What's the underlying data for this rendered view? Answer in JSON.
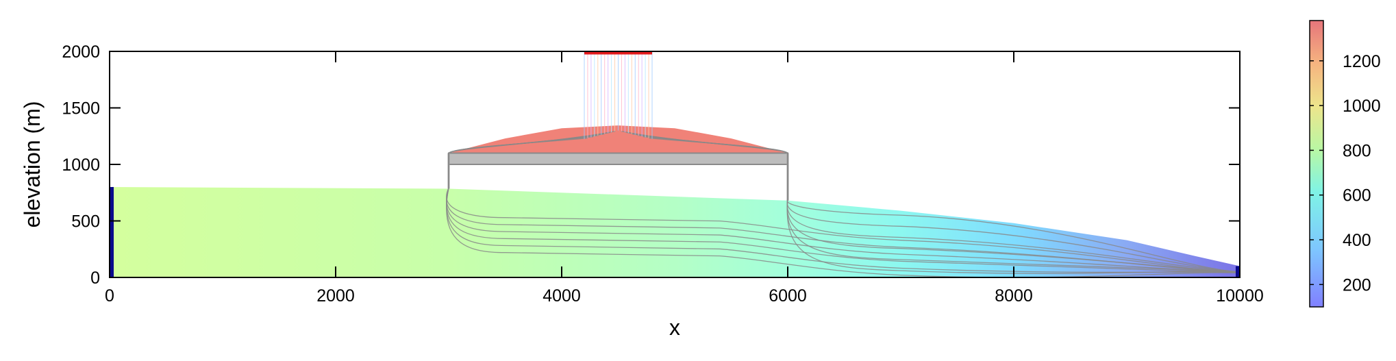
{
  "chart_data": {
    "type": "heatmap",
    "title": "",
    "xlabel": "x",
    "ylabel": "elevation (m)",
    "xlim": [
      0,
      10000
    ],
    "ylim": [
      0,
      2000
    ],
    "xticks": [
      0,
      2000,
      4000,
      6000,
      8000,
      10000
    ],
    "yticks": [
      0,
      500,
      1000,
      1500,
      2000
    ],
    "grid": false,
    "colorbar": {
      "range": [
        100,
        1380
      ],
      "ticks": [
        200,
        400,
        600,
        800,
        1000,
        1200
      ],
      "colormap": "rainbow",
      "alpha": 0.55
    },
    "domains": {
      "aquifer_top": [
        [
          0,
          800
        ],
        [
          3000,
          785
        ],
        [
          6000,
          680
        ],
        [
          7000,
          590
        ],
        [
          8000,
          480
        ],
        [
          9000,
          330
        ],
        [
          9600,
          190
        ],
        [
          10000,
          100
        ]
      ],
      "mound_top": [
        [
          3000,
          1100
        ],
        [
          3500,
          1230
        ],
        [
          4000,
          1320
        ],
        [
          4500,
          1345
        ],
        [
          5000,
          1320
        ],
        [
          5500,
          1230
        ],
        [
          6000,
          1100
        ]
      ],
      "clay_layer": {
        "x": [
          3000,
          6000
        ],
        "y": [
          1000,
          1100
        ]
      },
      "vadose_column_left_x": 3000,
      "vadose_column_right_x": 6000
    },
    "recharge_source": {
      "x": [
        4200,
        4800
      ],
      "y": 2000,
      "color": "#e31a1c"
    },
    "boundaries": [
      {
        "x": 0,
        "y": [
          0,
          800
        ],
        "color": "#0a0a8c"
      },
      {
        "x": 10000,
        "y": [
          0,
          100
        ],
        "color": "#0a0a8c"
      }
    ],
    "streamlines": {
      "count": 12,
      "source_x": [
        4230,
        4770
      ],
      "left_mid_y": [
        560,
        220
      ],
      "right_mid_y": [
        620,
        80
      ],
      "color": "#888888"
    }
  }
}
